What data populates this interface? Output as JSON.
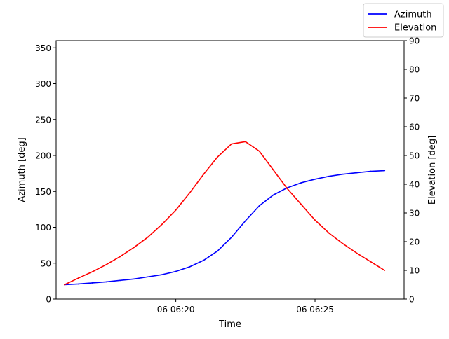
{
  "chart_data": {
    "type": "line",
    "xlabel": "Time",
    "x_ticks": [
      "06 06:20",
      "06 06:25"
    ],
    "x_tick_minutes": [
      20,
      25
    ],
    "xlim_minutes": [
      15.7,
      28.2
    ],
    "left_axis": {
      "label": "Azimuth [deg]",
      "ylim": [
        0,
        360
      ],
      "ticks": [
        0,
        50,
        100,
        150,
        200,
        250,
        300,
        350
      ]
    },
    "right_axis": {
      "label": "Elevation [deg]",
      "ylim": [
        0,
        90
      ],
      "ticks": [
        0,
        10,
        20,
        30,
        40,
        50,
        60,
        70,
        80,
        90
      ]
    },
    "legend_placement": "top-right",
    "grid": false,
    "x_minutes": [
      16.0,
      16.5,
      17.0,
      17.5,
      18.0,
      18.5,
      19.0,
      19.5,
      20.0,
      20.5,
      21.0,
      21.5,
      22.0,
      22.5,
      23.0,
      23.5,
      24.0,
      24.5,
      25.0,
      25.5,
      26.0,
      26.5,
      27.0,
      27.5
    ],
    "series": [
      {
        "name": "Azimuth",
        "axis": "left",
        "color": "#0000ff",
        "values": [
          20,
          21,
          22.5,
          24,
          26,
          28,
          31,
          34,
          38.5,
          45,
          54,
          67,
          86,
          109,
          130,
          145,
          155,
          162,
          167,
          171,
          174,
          176,
          178,
          179
        ]
      },
      {
        "name": "Elevation",
        "axis": "right",
        "color": "#ff0000",
        "values": [
          5,
          7.3,
          9.5,
          12,
          14.8,
          18,
          21.6,
          26,
          31,
          37,
          43.5,
          49.5,
          54,
          54.8,
          51.5,
          45,
          38.5,
          33,
          27.5,
          23,
          19.3,
          16,
          13,
          10
        ]
      }
    ]
  }
}
